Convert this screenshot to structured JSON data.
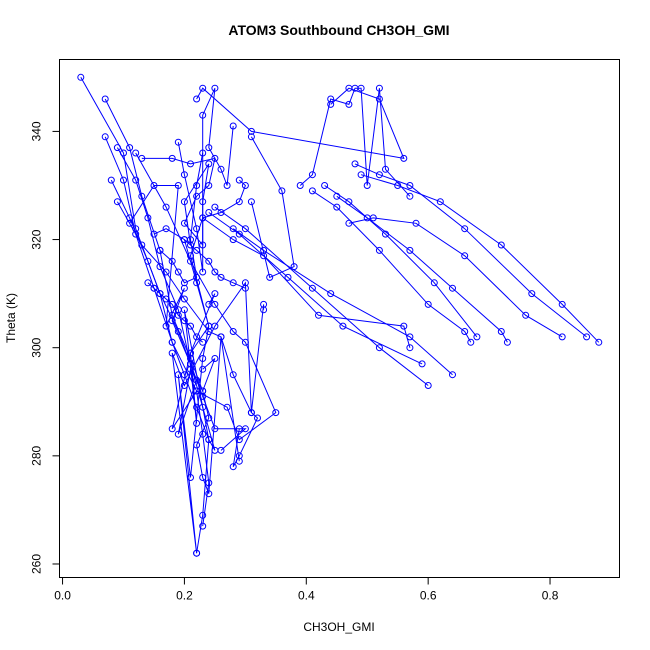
{
  "chart_data": {
    "type": "line",
    "title": "ATOM3 Southbound CH3OH_GMI",
    "xlabel": "CH3OH_GMI",
    "ylabel": "Theta (K)",
    "xlim": [
      -0.005,
      0.914
    ],
    "ylim": [
      257.5,
      353.3
    ],
    "xticks": [
      0.0,
      0.2,
      0.4,
      0.6,
      0.8
    ],
    "xtick_labels": [
      "0.0",
      "0.2",
      "0.4",
      "0.6",
      "0.8"
    ],
    "yticks": [
      260,
      280,
      300,
      320,
      340
    ],
    "yticklabels": [
      "260",
      "280",
      "300",
      "320",
      "340"
    ],
    "grid": false,
    "legend": "none",
    "series_color": "#0000ff",
    "series": [
      {
        "x": [
          0.03,
          0.1,
          0.12,
          0.16,
          0.18,
          0.2,
          0.22,
          0.24,
          0.2,
          0.22,
          0.21,
          0.24,
          0.23,
          0.21,
          0.19,
          0.22,
          0.18,
          0.2,
          0.25,
          0.3,
          0.31,
          0.33,
          0.33
        ],
        "y": [
          350,
          336,
          322,
          310,
          301,
          295,
          289,
          283,
          307,
          286,
          299,
          304,
          298,
          276,
          295,
          262,
          299,
          293,
          304,
          312,
          288,
          308,
          307
        ]
      },
      {
        "x": [
          0.07,
          0.11,
          0.13,
          0.16,
          0.18,
          0.21,
          0.23,
          0.24,
          0.22,
          0.23,
          0.24,
          0.26,
          0.29
        ],
        "y": [
          346,
          337,
          328,
          318,
          306,
          298,
          292,
          287,
          282,
          276,
          273,
          302,
          279
        ]
      },
      {
        "x": [
          0.09,
          0.12,
          0.14,
          0.16,
          0.19,
          0.21,
          0.23,
          0.25,
          0.24,
          0.23,
          0.22
        ],
        "y": [
          337,
          331,
          324,
          315,
          307,
          297,
          289,
          281,
          283,
          269,
          262
        ]
      },
      {
        "x": [
          0.07,
          0.1,
          0.12,
          0.15,
          0.18,
          0.22,
          0.23,
          0.24,
          0.23
        ],
        "y": [
          339,
          331,
          321,
          311,
          301,
          292,
          284,
          275,
          267
        ]
      },
      {
        "x": [
          0.09,
          0.13,
          0.17,
          0.2,
          0.24,
          0.26,
          0.28,
          0.31,
          0.32,
          0.29,
          0.28,
          0.29
        ],
        "y": [
          327,
          319,
          314,
          309,
          303,
          302,
          295,
          288,
          287,
          280,
          278,
          285
        ]
      },
      {
        "x": [
          0.08,
          0.11,
          0.14,
          0.16,
          0.19,
          0.21,
          0.23,
          0.25,
          0.3,
          0.26
        ],
        "y": [
          331,
          324,
          316,
          310,
          303,
          297,
          291,
          285,
          285,
          281
        ]
      },
      {
        "x": [
          0.11,
          0.15,
          0.19,
          0.17,
          0.2,
          0.18,
          0.21,
          0.22,
          0.19,
          0.21,
          0.23,
          0.25,
          0.23
        ],
        "y": [
          323,
          330,
          330,
          304,
          311,
          305,
          297,
          294,
          284,
          296,
          292,
          298,
          296
        ]
      },
      {
        "x": [
          0.12,
          0.17,
          0.21,
          0.25,
          0.28,
          0.3,
          0.35,
          0.29,
          0.27,
          0.22,
          0.18,
          0.21,
          0.25,
          0.24
        ],
        "y": [
          336,
          326,
          316,
          308,
          303,
          301,
          288,
          283,
          289,
          292,
          285,
          299,
          310,
          308
        ]
      },
      {
        "x": [
          0.13,
          0.18,
          0.21,
          0.25,
          0.24,
          0.22,
          0.2,
          0.23,
          0.23,
          0.24,
          0.2,
          0.21
        ],
        "y": [
          335,
          335,
          334,
          335,
          330,
          328,
          323,
          319,
          327,
          334,
          327,
          319
        ]
      },
      {
        "x": [
          0.15,
          0.17,
          0.2,
          0.22,
          0.24,
          0.21,
          0.23,
          0.26,
          0.29,
          0.3,
          0.29
        ],
        "y": [
          321,
          322,
          320,
          312,
          304,
          317,
          324,
          325,
          327,
          330,
          331
        ]
      },
      {
        "x": [
          0.16,
          0.18,
          0.19,
          0.2,
          0.22,
          0.21,
          0.22,
          0.23
        ],
        "y": [
          318,
          316,
          314,
          312,
          313,
          320,
          330,
          336
        ]
      },
      {
        "x": [
          0.14,
          0.15,
          0.17,
          0.18,
          0.19,
          0.2,
          0.21,
          0.22,
          0.23
        ],
        "y": [
          312,
          311,
          309,
          308,
          306,
          305,
          304,
          302,
          301
        ]
      },
      {
        "x": [
          0.19,
          0.2,
          0.22,
          0.23,
          0.23,
          0.25,
          0.24,
          0.26,
          0.27,
          0.28
        ],
        "y": [
          338,
          332,
          322,
          314,
          343,
          348,
          337,
          333,
          330,
          341
        ]
      },
      {
        "x": [
          0.2,
          0.22,
          0.24,
          0.25,
          0.26,
          0.28,
          0.3
        ],
        "y": [
          320,
          318,
          316,
          314,
          313,
          312,
          311
        ]
      },
      {
        "x": [
          0.22,
          0.23,
          0.31,
          0.56,
          0.52,
          0.47,
          0.44
        ],
        "y": [
          346,
          348,
          340,
          335,
          346,
          348,
          345
        ]
      },
      {
        "x": [
          0.23,
          0.28,
          0.33,
          0.42,
          0.56,
          0.57
        ],
        "y": [
          324,
          320,
          317,
          306,
          304,
          300
        ]
      },
      {
        "x": [
          0.24,
          0.29,
          0.37,
          0.46,
          0.59
        ],
        "y": [
          325,
          321,
          313,
          304,
          297
        ]
      },
      {
        "x": [
          0.25,
          0.3,
          0.41,
          0.52,
          0.6
        ],
        "y": [
          326,
          322,
          311,
          300,
          293
        ]
      },
      {
        "x": [
          0.28,
          0.33,
          0.44,
          0.57,
          0.64
        ],
        "y": [
          322,
          318,
          310,
          302,
          295
        ]
      },
      {
        "x": [
          0.31,
          0.36,
          0.38,
          0.34,
          0.31
        ],
        "y": [
          339,
          329,
          315,
          313,
          327
        ]
      },
      {
        "x": [
          0.39,
          0.41,
          0.44,
          0.47,
          0.48,
          0.49,
          0.5,
          0.52,
          0.53,
          0.57
        ],
        "y": [
          330,
          332,
          346,
          345,
          348,
          348,
          330,
          348,
          333,
          328
        ]
      },
      {
        "x": [
          0.41,
          0.45,
          0.52,
          0.6,
          0.66,
          0.67
        ],
        "y": [
          329,
          326,
          318,
          308,
          303,
          301
        ]
      },
      {
        "x": [
          0.43,
          0.47,
          0.53,
          0.61,
          0.68
        ],
        "y": [
          330,
          327,
          321,
          312,
          302
        ]
      },
      {
        "x": [
          0.45,
          0.5,
          0.57,
          0.64,
          0.72,
          0.73
        ],
        "y": [
          328,
          324,
          318,
          311,
          303,
          301
        ]
      },
      {
        "x": [
          0.47,
          0.51,
          0.58,
          0.66,
          0.76,
          0.82
        ],
        "y": [
          323,
          324,
          323,
          317,
          306,
          302
        ]
      },
      {
        "x": [
          0.48,
          0.52,
          0.57,
          0.66,
          0.77,
          0.86
        ],
        "y": [
          334,
          332,
          330,
          322,
          310,
          302
        ]
      },
      {
        "x": [
          0.49,
          0.55,
          0.62,
          0.72,
          0.82,
          0.88
        ],
        "y": [
          332,
          330,
          327,
          319,
          308,
          301
        ]
      }
    ]
  }
}
